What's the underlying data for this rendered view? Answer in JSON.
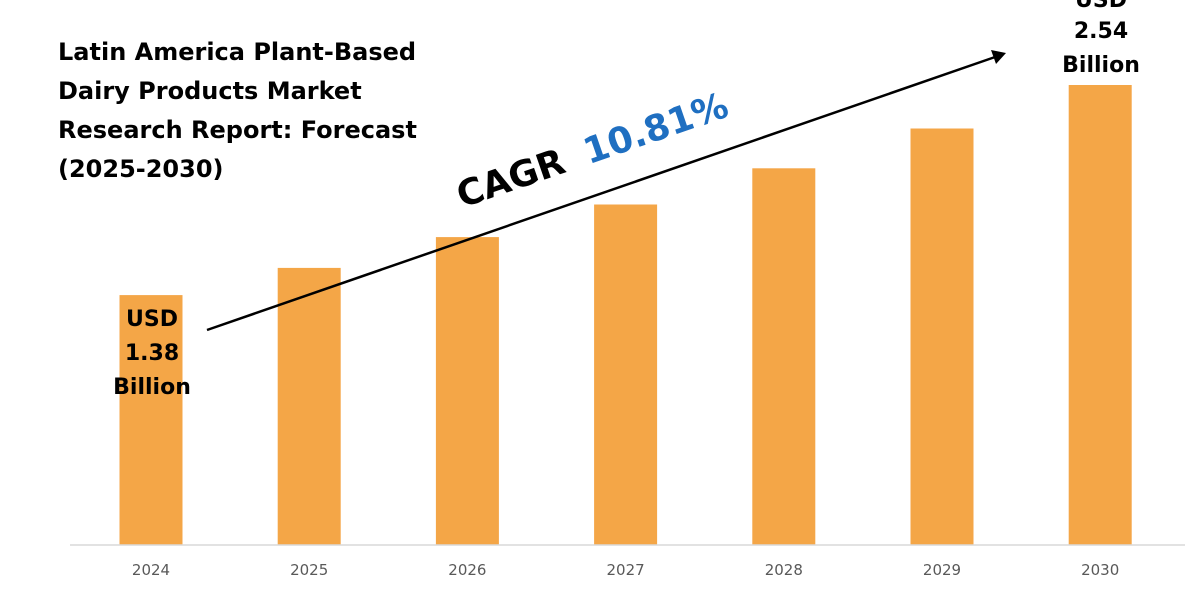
{
  "colors": {
    "bar": "#f4a647",
    "axis": "#d9d9d9",
    "cagr_value": "#1f6fc1",
    "arrow": "#000000"
  },
  "chart_data": {
    "type": "bar",
    "title_lines": [
      "Latin America Plant-Based",
      "Dairy Products Market",
      "Research Report: Forecast",
      "(2025-2030)"
    ],
    "categories": [
      "2024",
      "2025",
      "2026",
      "2027",
      "2028",
      "2029",
      "2030"
    ],
    "values": [
      1.38,
      1.53,
      1.7,
      1.88,
      2.08,
      2.3,
      2.54
    ],
    "unit": "USD Billion",
    "ylim": [
      0,
      2.6
    ],
    "grid": false,
    "legend": "none",
    "annotations": {
      "start": {
        "category": "2024",
        "lines": [
          "USD",
          "1.38",
          "Billion"
        ]
      },
      "end": {
        "category": "2030",
        "lines": [
          "USD",
          "2.54",
          "Billion"
        ]
      },
      "cagr_prefix": "CAGR",
      "cagr_value": "10.81%"
    }
  }
}
